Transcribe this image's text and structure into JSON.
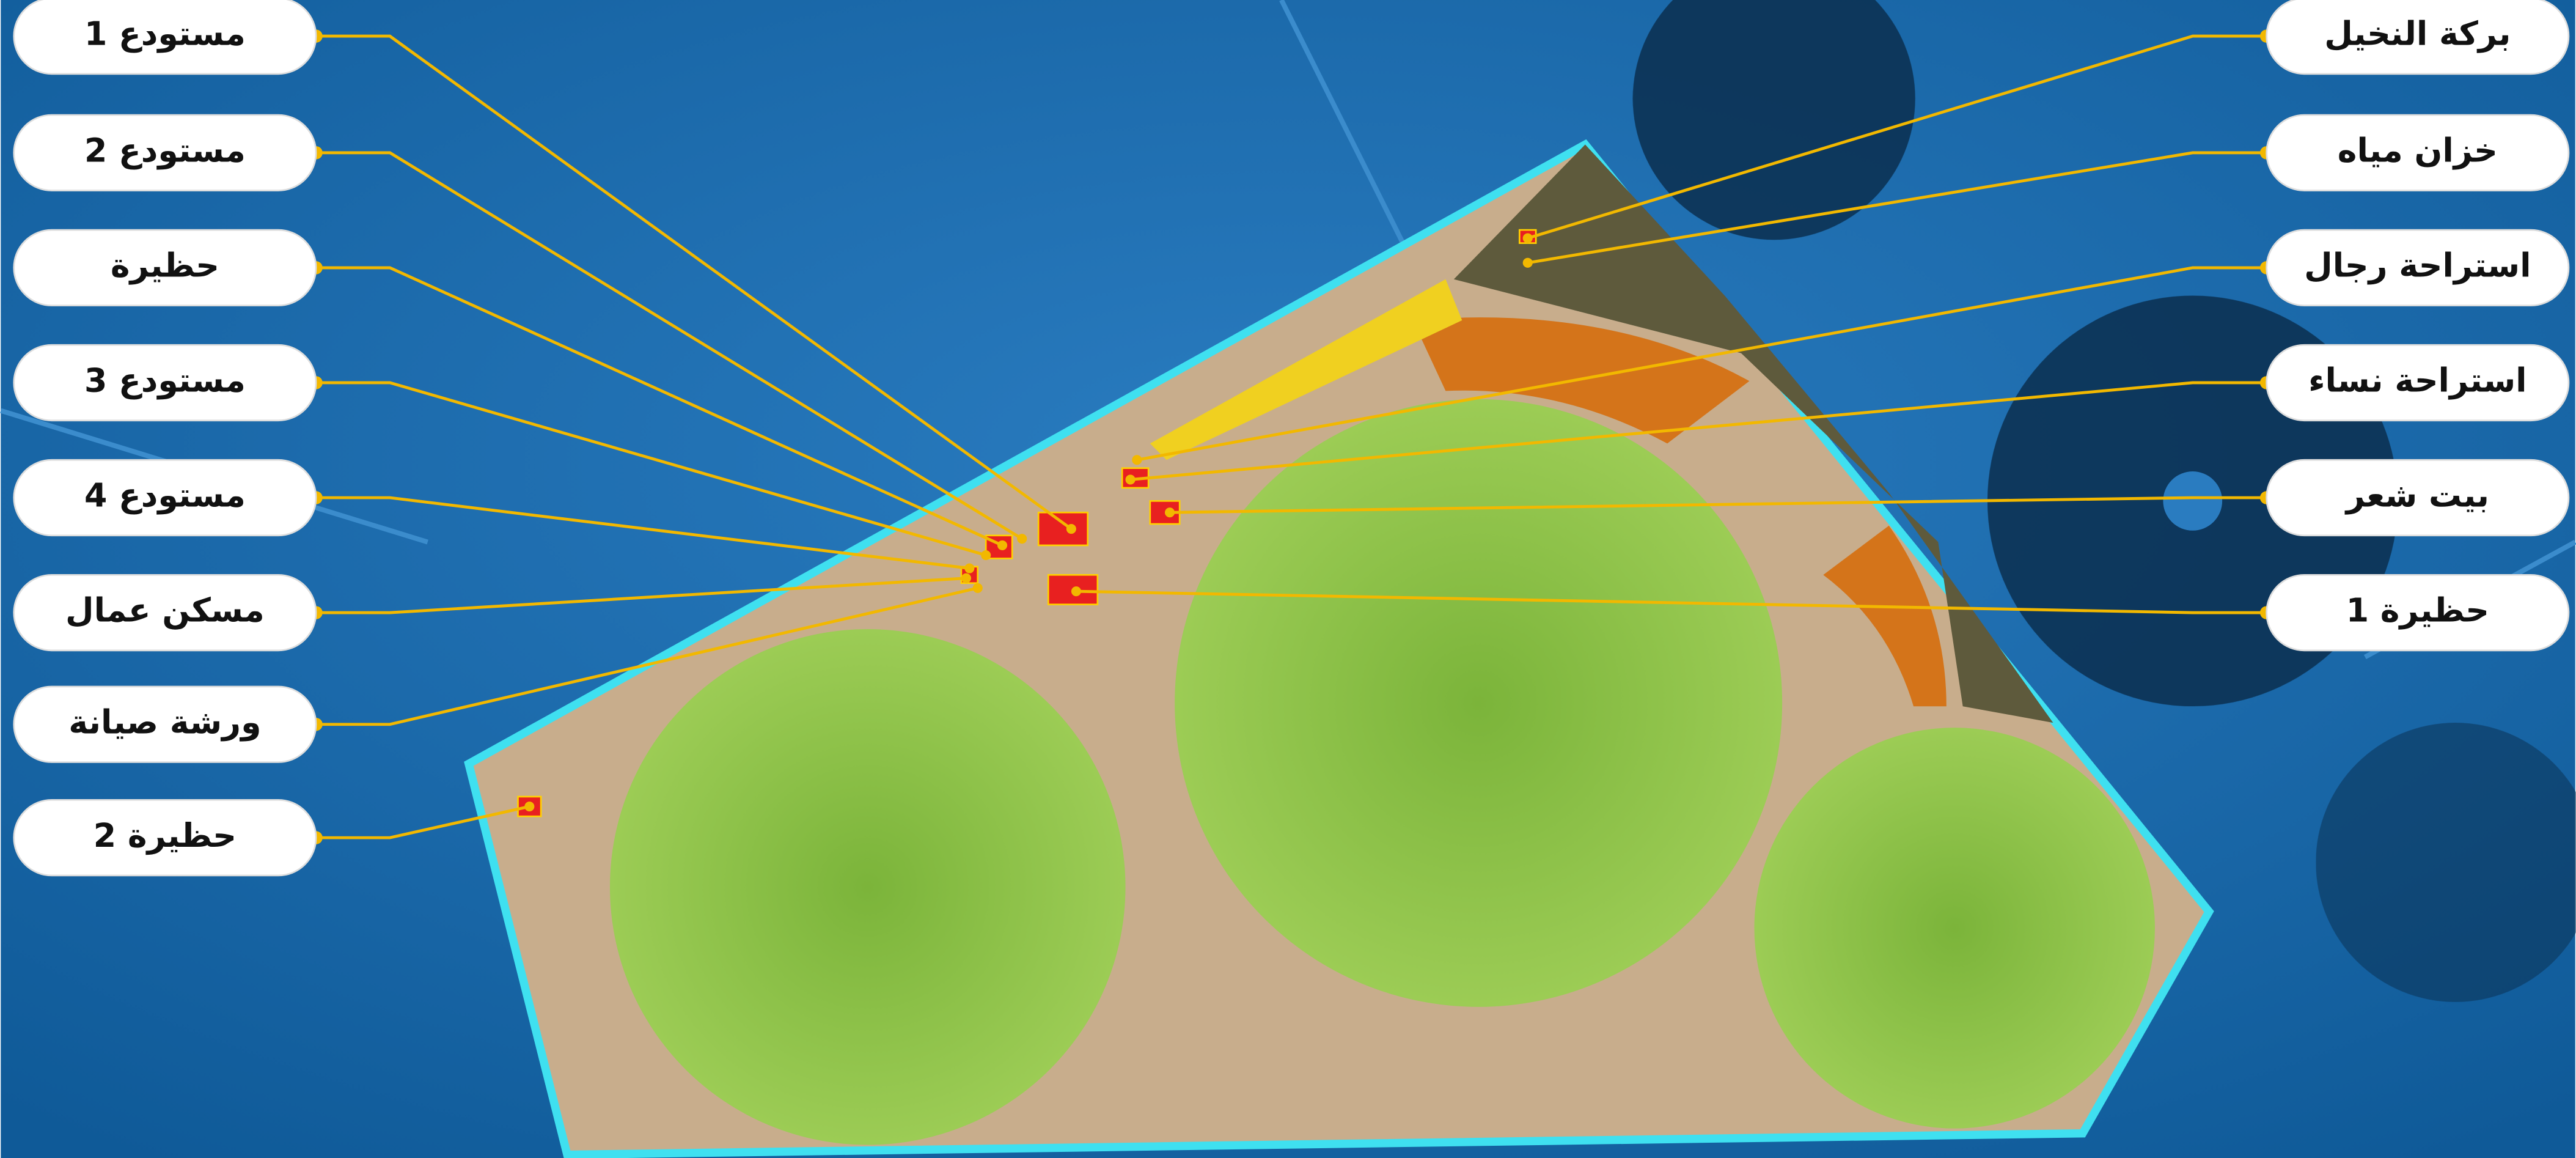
{
  "left_labels": [
    "مستودع 1",
    "مستودع 2",
    "حظيرة",
    "مستودع 3",
    "مستودع 4",
    "مسكن عمال",
    "ورشة صيانة",
    "حظيرة 2"
  ],
  "right_labels": [
    "بركة النخيل",
    "خزان مياه",
    "استراحة رجال",
    "استراحة نساء",
    "بيت شعر",
    "حظيرة 1"
  ]
}
